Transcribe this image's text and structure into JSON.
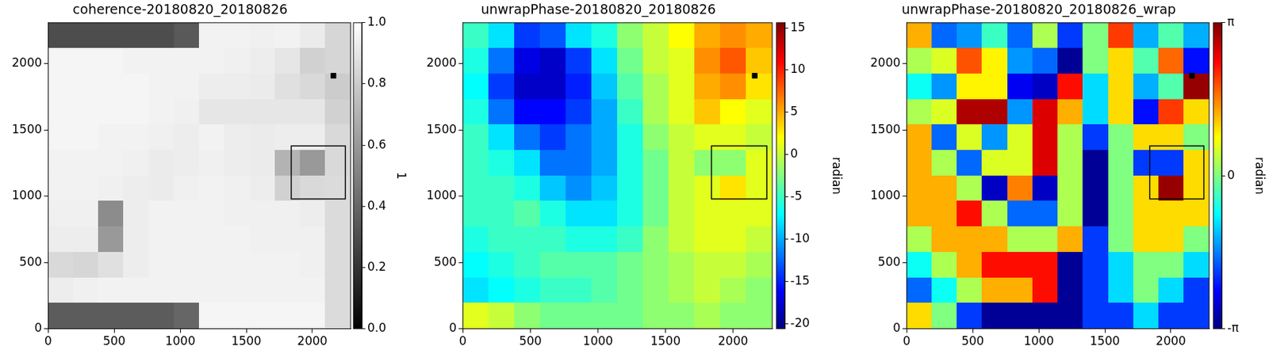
{
  "chart_data": [
    {
      "type": "heatmap",
      "title": "coherence-20180820_20180826",
      "color": "gray",
      "grid": false,
      "xlim": [
        0,
        2290
      ],
      "ylim": [
        0,
        2310
      ],
      "xticks": [
        0,
        500,
        1000,
        1500,
        2000
      ],
      "yticks": [
        0,
        500,
        1000,
        1500,
        2000
      ],
      "cells": [
        [
          0.3,
          0.3,
          0.3,
          0.3,
          0.3,
          0.35,
          0.95,
          0.95,
          0.94,
          0.95,
          0.92,
          0.84
        ],
        [
          0.96,
          0.96,
          0.96,
          0.95,
          0.95,
          0.95,
          0.95,
          0.94,
          0.93,
          0.9,
          0.82,
          0.84
        ],
        [
          0.96,
          0.96,
          0.96,
          0.96,
          0.95,
          0.95,
          0.93,
          0.93,
          0.92,
          0.88,
          0.85,
          0.8
        ],
        [
          0.96,
          0.96,
          0.96,
          0.96,
          0.95,
          0.94,
          0.9,
          0.9,
          0.9,
          0.9,
          0.9,
          0.82
        ],
        [
          0.96,
          0.96,
          0.95,
          0.95,
          0.94,
          0.93,
          0.95,
          0.93,
          0.92,
          0.93,
          0.93,
          0.85
        ],
        [
          0.95,
          0.95,
          0.95,
          0.94,
          0.92,
          0.93,
          0.94,
          0.93,
          0.92,
          0.7,
          0.6,
          0.85
        ],
        [
          0.95,
          0.95,
          0.94,
          0.93,
          0.92,
          0.94,
          0.95,
          0.94,
          0.93,
          0.82,
          0.85,
          0.86
        ],
        [
          0.94,
          0.94,
          0.55,
          0.93,
          0.95,
          0.95,
          0.95,
          0.94,
          0.94,
          0.94,
          0.93,
          0.86
        ],
        [
          0.93,
          0.93,
          0.6,
          0.93,
          0.95,
          0.95,
          0.95,
          0.95,
          0.94,
          0.94,
          0.94,
          0.86
        ],
        [
          0.85,
          0.84,
          0.88,
          0.93,
          0.95,
          0.95,
          0.95,
          0.95,
          0.95,
          0.95,
          0.94,
          0.86
        ],
        [
          0.93,
          0.94,
          0.95,
          0.95,
          0.95,
          0.95,
          0.95,
          0.95,
          0.95,
          0.95,
          0.95,
          0.86
        ],
        [
          0.36,
          0.36,
          0.36,
          0.36,
          0.36,
          0.4,
          0.96,
          0.96,
          0.96,
          0.96,
          0.96,
          0.86
        ]
      ],
      "colorbar": {
        "label": "1",
        "range": [
          0,
          1
        ],
        "ticks": [
          {
            "value": 0,
            "label": "0.0"
          },
          {
            "value": 0.2,
            "label": "0.2"
          },
          {
            "value": 0.4,
            "label": "0.4"
          },
          {
            "value": 0.6,
            "label": "0.6"
          },
          {
            "value": 0.8,
            "label": "0.8"
          },
          {
            "value": 1,
            "label": "1.0"
          }
        ]
      },
      "box": {
        "x": [
          1840,
          2250
        ],
        "y": [
          980,
          1380
        ]
      },
      "points": [
        {
          "x": 2160,
          "y": 1910
        }
      ],
      "marker": "square"
    },
    {
      "type": "heatmap",
      "title": "unwrapPhase-20180820_20180826",
      "color": "jet",
      "grid": false,
      "xlim": [
        0,
        2290
      ],
      "ylim": [
        0,
        2310
      ],
      "xticks": [
        0,
        500,
        1000,
        1500,
        2000
      ],
      "yticks": [
        0,
        500,
        1000,
        1500,
        2000
      ],
      "cells": [
        [
          -5,
          -8,
          -14,
          -13,
          -8,
          -6,
          -2,
          0,
          2,
          5,
          6,
          5
        ],
        [
          -6,
          -12,
          -17,
          -18,
          -14,
          -8,
          -3,
          0,
          1,
          6,
          8,
          4
        ],
        [
          -7,
          -14,
          -18,
          -18,
          -15,
          -9,
          -4,
          -1,
          1,
          5,
          6,
          3
        ],
        [
          -6,
          -12,
          -16,
          -16,
          -14,
          -10,
          -5,
          -1,
          1,
          4,
          2,
          1
        ],
        [
          -5,
          -8,
          -12,
          -14,
          -12,
          -10,
          -6,
          -2,
          0,
          1,
          1,
          0
        ],
        [
          -5,
          -6,
          -8,
          -12,
          -12,
          -10,
          -6,
          -3,
          0,
          -2,
          -2,
          1
        ],
        [
          -5,
          -5,
          -6,
          -9,
          -11,
          -9,
          -6,
          -3,
          0,
          1,
          3,
          1
        ],
        [
          -5,
          -5,
          -4,
          -6,
          -8,
          -8,
          -6,
          -3,
          0,
          1,
          1,
          1
        ],
        [
          -6,
          -5,
          -5,
          -5,
          -6,
          -6,
          -5,
          -2,
          0,
          1,
          1,
          0
        ],
        [
          -7,
          -6,
          -5,
          -4,
          -4,
          -4,
          -3,
          -2,
          -1,
          0,
          0,
          -1
        ],
        [
          -8,
          -7,
          -6,
          -5,
          -5,
          -4,
          -3,
          -2,
          -1,
          0,
          -1,
          -2
        ],
        [
          1,
          0,
          -2,
          -3,
          -3,
          -3,
          -3,
          -2,
          -2,
          -1,
          -2,
          -2
        ]
      ],
      "colorbar": {
        "label": "radian",
        "range": [
          -20.6,
          15.6
        ],
        "ticks": [
          -20,
          -15,
          -10,
          -5,
          0,
          5,
          10,
          15
        ]
      },
      "box": {
        "x": [
          1840,
          2250
        ],
        "y": [
          980,
          1380
        ]
      },
      "points": [
        {
          "x": 2160,
          "y": 1910
        }
      ],
      "marker": "square"
    },
    {
      "type": "heatmap",
      "title": "unwrapPhase-20180820_20180826_wrap",
      "color": "jet",
      "grid": false,
      "xlim": [
        0,
        2290
      ],
      "ylim": [
        0,
        2310
      ],
      "xticks": [
        0,
        500,
        1000,
        1500,
        2000
      ],
      "yticks": [
        0,
        500,
        1000,
        1500,
        2000
      ],
      "cells": [
        [
          1.28,
          -1.72,
          -1.43,
          -0.43,
          -1.72,
          0.28,
          -2,
          0,
          2,
          -1.28,
          -0.28,
          -1.28
        ],
        [
          0.28,
          0.57,
          1.85,
          0.85,
          -1.43,
          -1.72,
          -3,
          0,
          1,
          -0.28,
          1.72,
          -2.28
        ],
        [
          -0.72,
          -1.43,
          0.85,
          0.85,
          -2.43,
          -2.72,
          2.28,
          -1,
          1,
          -1.28,
          -0.28,
          3
        ],
        [
          0.28,
          0.57,
          2.85,
          2.85,
          -1.43,
          2.57,
          1.28,
          -1,
          1,
          -2.28,
          2,
          1
        ],
        [
          1.28,
          -1.72,
          0.57,
          -1.43,
          0.57,
          2.57,
          0.28,
          -2,
          0,
          1,
          1,
          0
        ],
        [
          1.28,
          0.28,
          -1.72,
          0.57,
          0.57,
          2.57,
          0.28,
          -3,
          0,
          -2,
          -2,
          1
        ],
        [
          1.28,
          1.28,
          0.28,
          -2.72,
          1.57,
          -2.72,
          0.28,
          -3,
          0,
          1,
          3,
          1
        ],
        [
          1.28,
          1.28,
          2.28,
          0.28,
          -1.72,
          -1.72,
          0.28,
          -3,
          0,
          1,
          1,
          1
        ],
        [
          0.28,
          1.28,
          1.28,
          1.28,
          0.28,
          0.28,
          1.28,
          -2,
          0,
          1,
          1,
          0
        ],
        [
          -0.72,
          0.28,
          1.28,
          2.28,
          2.28,
          2.28,
          -3,
          -2,
          -1,
          0,
          0,
          -1
        ],
        [
          -1.72,
          -0.72,
          0.28,
          1.28,
          1.28,
          2.28,
          -3,
          -2,
          -1,
          0,
          -1,
          -2
        ],
        [
          1,
          0,
          -2,
          -3,
          -3,
          -3,
          -3,
          -2,
          -2,
          -1,
          -2,
          -2
        ]
      ],
      "colorbar": {
        "label": "radian",
        "range": [
          -3.1416,
          3.1416
        ],
        "ticks": [
          {
            "value": -3.1416,
            "label": "-π"
          },
          {
            "value": 0,
            "label": "0"
          },
          {
            "value": 3.1416,
            "label": "π"
          }
        ]
      },
      "box": {
        "x": [
          1840,
          2250
        ],
        "y": [
          980,
          1380
        ]
      },
      "points": [
        {
          "x": 2160,
          "y": 1910
        }
      ],
      "marker": "square"
    }
  ]
}
